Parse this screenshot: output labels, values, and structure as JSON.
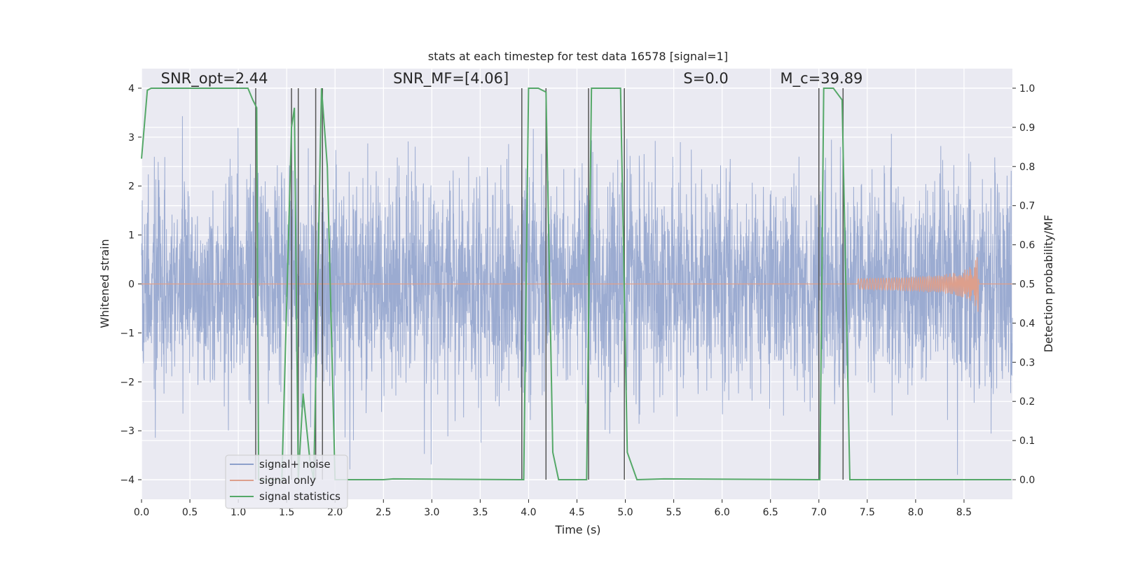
{
  "chart_data": {
    "type": "line",
    "title": "stats at each timestep for test data 16578 [signal=1]",
    "xlabel": "Time (s)",
    "ylabel_left": "Whitened strain",
    "ylabel_right": "Detection probability/MF",
    "xlim": [
      0.0,
      9.0
    ],
    "ylim_left": [
      -4.4,
      4.4
    ],
    "ylim_right": [
      -0.05,
      1.05
    ],
    "grid": true,
    "legend_location": "lower-left",
    "xticks": [
      "0.0",
      "0.5",
      "1.0",
      "1.5",
      "2.0",
      "2.5",
      "3.0",
      "3.5",
      "4.0",
      "4.5",
      "5.0",
      "5.5",
      "6.0",
      "6.5",
      "7.0",
      "7.5",
      "8.0",
      "8.5"
    ],
    "yticks_left": [
      "4",
      "3",
      "2",
      "1",
      "0",
      "−1",
      "−2",
      "−3",
      "−4"
    ],
    "yticks_right": [
      "1.0",
      "0.9",
      "0.8",
      "0.7",
      "0.6",
      "0.5",
      "0.4",
      "0.3",
      "0.2",
      "0.1",
      "0.0"
    ],
    "annotations": [
      {
        "label": "SNR_opt=2.44",
        "x": 0.2,
        "y": 4.1
      },
      {
        "label": "SNR_MF=[4.06]",
        "x": 2.6,
        "y": 4.1
      },
      {
        "label": "S=0.0",
        "x": 5.6,
        "y": 4.1
      },
      {
        "label": "M_c=39.89",
        "x": 6.6,
        "y": 4.1
      }
    ],
    "series": [
      {
        "name": "signal+ noise",
        "color": "#8da0cb",
        "description_range": [
          -3.9,
          3.9
        ],
        "noise_amplitude_envelope": 1.6
      },
      {
        "name": "signal only",
        "color": "#dd9f8c",
        "chirp_start": 7.4,
        "chirp_peak_time": 8.65,
        "chirp_peak_amplitude": 0.75
      },
      {
        "name": "signal statistics",
        "color": "#55a868",
        "axis": "right",
        "points": [
          [
            0.0,
            0.82
          ],
          [
            0.06,
            0.995
          ],
          [
            0.1,
            1.0
          ],
          [
            1.1,
            1.0
          ],
          [
            1.15,
            0.97
          ],
          [
            1.19,
            0.95
          ],
          [
            1.21,
            0.0
          ],
          [
            1.3,
            0.0
          ],
          [
            1.45,
            0.0
          ],
          [
            1.55,
            0.9
          ],
          [
            1.58,
            0.95
          ],
          [
            1.62,
            0.0
          ],
          [
            1.67,
            0.22
          ],
          [
            1.74,
            0.05
          ],
          [
            1.78,
            0.0
          ],
          [
            1.86,
            1.0
          ],
          [
            1.92,
            0.8
          ],
          [
            2.0,
            0.0
          ],
          [
            2.5,
            0.0
          ],
          [
            2.6,
            0.002
          ],
          [
            3.9,
            0.0
          ],
          [
            3.95,
            0.0
          ],
          [
            4.0,
            1.0
          ],
          [
            4.1,
            1.0
          ],
          [
            4.18,
            0.99
          ],
          [
            4.25,
            0.07
          ],
          [
            4.31,
            0.0
          ],
          [
            4.6,
            0.0
          ],
          [
            4.65,
            1.0
          ],
          [
            4.95,
            1.0
          ],
          [
            5.02,
            0.07
          ],
          [
            5.12,
            0.0
          ],
          [
            5.4,
            0.002
          ],
          [
            6.98,
            0.0
          ],
          [
            7.01,
            0.0
          ],
          [
            7.05,
            1.0
          ],
          [
            7.15,
            1.0
          ],
          [
            7.24,
            0.97
          ],
          [
            7.32,
            0.0
          ],
          [
            8.99,
            0.0
          ]
        ]
      }
    ],
    "vertical_lines": [
      1.18,
      1.55,
      1.62,
      1.8,
      1.87,
      3.93,
      4.18,
      4.62,
      4.99,
      7.0,
      7.25
    ]
  }
}
